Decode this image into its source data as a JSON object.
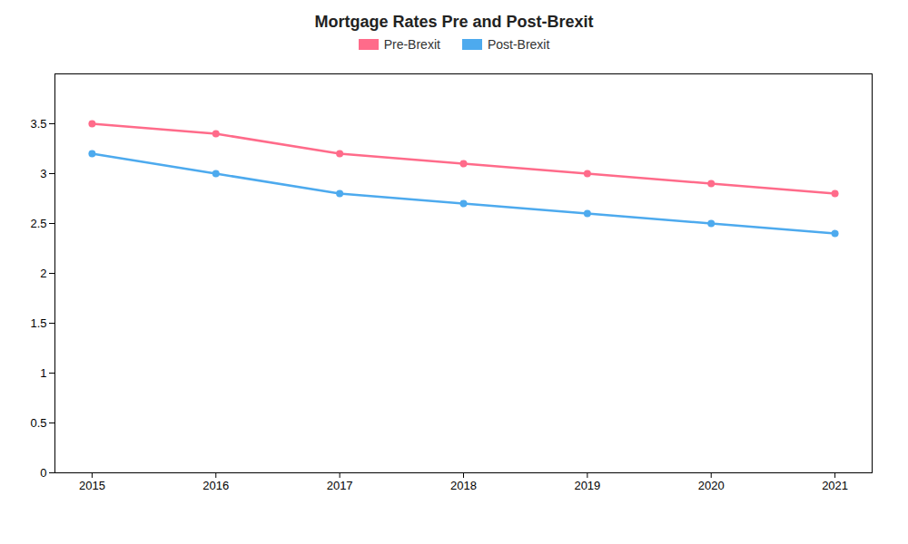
{
  "chart_data": {
    "type": "line",
    "title": "Mortgage Rates Pre and Post-Brexit",
    "x": [
      2015,
      2016,
      2017,
      2018,
      2019,
      2020,
      2021
    ],
    "series": [
      {
        "name": "Pre-Brexit",
        "color": "#FF6B8A",
        "marker": "circle",
        "values": [
          3.5,
          3.4,
          3.2,
          3.1,
          3.0,
          2.9,
          2.8
        ]
      },
      {
        "name": "Post-Brexit",
        "color": "#4DAAEE",
        "marker": "circle",
        "values": [
          3.2,
          3.0,
          2.8,
          2.7,
          2.6,
          2.5,
          2.4
        ]
      }
    ],
    "xlim": [
      2014.7,
      2021.3
    ],
    "xticks": [
      2015,
      2016,
      2017,
      2018,
      2019,
      2020,
      2021
    ],
    "ylim": [
      0,
      4.0
    ],
    "yticks": [
      0,
      0.5,
      1,
      1.5,
      2,
      2.5,
      3,
      3.5
    ],
    "grid": false,
    "legend": "upper center"
  }
}
